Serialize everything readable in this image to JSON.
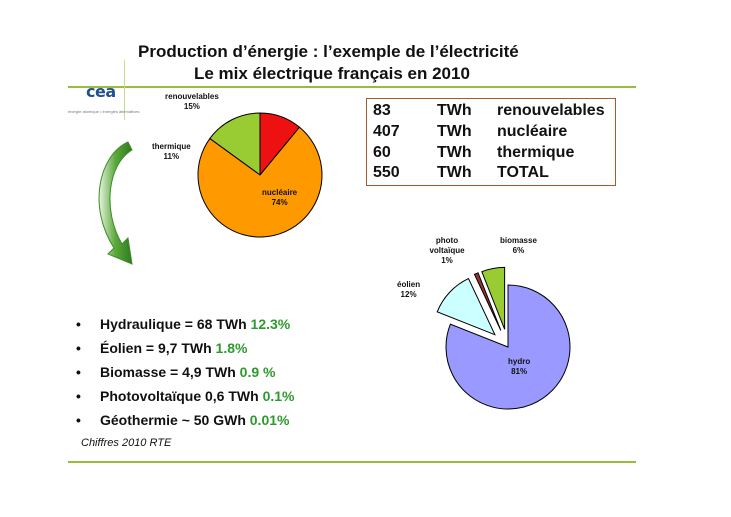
{
  "header": {
    "title_line1": "Production d’énergie : l’exemple de l’électricité",
    "title_line2": "Le mix électrique français en 2010"
  },
  "logo": {
    "name": "cea",
    "tagline": "énergie atomique • énergies alternatives"
  },
  "colors": {
    "accent_green": "#9bbb3a",
    "table_border": "#a65a2a",
    "percent_green": "#2e9a2e"
  },
  "chart_data": [
    {
      "type": "pie",
      "title": "",
      "slices": [
        {
          "label": "renouvelables",
          "value": 15,
          "display": "15%",
          "color": "#99cc33"
        },
        {
          "label": "thermique",
          "value": 11,
          "display": "11%",
          "color": "#ee1111"
        },
        {
          "label": "nucléaire",
          "value": 74,
          "display": "74%",
          "color": "#ff9900"
        }
      ]
    },
    {
      "type": "pie",
      "title": "",
      "exploded": [
        "photo voltaïque",
        "biomasse",
        "éolien"
      ],
      "slices": [
        {
          "label": "hydro",
          "value": 81,
          "display": "81%",
          "color": "#9999ff"
        },
        {
          "label": "éolien",
          "value": 12,
          "display": "12%",
          "color": "#ccffff"
        },
        {
          "label": "photo voltaïque",
          "value": 1,
          "display": "1%",
          "color": "#993333"
        },
        {
          "label": "biomasse",
          "value": 6,
          "display": "6%",
          "color": "#99cc33"
        }
      ]
    }
  ],
  "table": {
    "rows": [
      {
        "value": "83",
        "unit": "TWh",
        "label": "renouvelables"
      },
      {
        "value": "407",
        "unit": "TWh",
        "label": "nucléaire"
      },
      {
        "value": "60",
        "unit": "TWh",
        "label": "thermique"
      },
      {
        "value": "550",
        "unit": "TWh",
        "label": "TOTAL"
      }
    ]
  },
  "bullets": [
    {
      "marker": "•",
      "text": "Hydraulique = 68 TWh ",
      "pct": "12.3%"
    },
    {
      "marker": "•",
      "text": "Éolien = 9,7 TWh ",
      "pct": "1.8%"
    },
    {
      "marker": "•",
      "text": "Biomasse = 4,9 TWh ",
      "pct": "0.9 %"
    },
    {
      "marker": "•",
      "text": "Photovoltaïque 0,6 TWh ",
      "pct": "0.1%"
    },
    {
      "marker": "•",
      "text": "Géothermie ~ 50 GWh ",
      "pct": "0.01%"
    }
  ],
  "footer": {
    "source": "Chiffres 2010 RTE"
  }
}
